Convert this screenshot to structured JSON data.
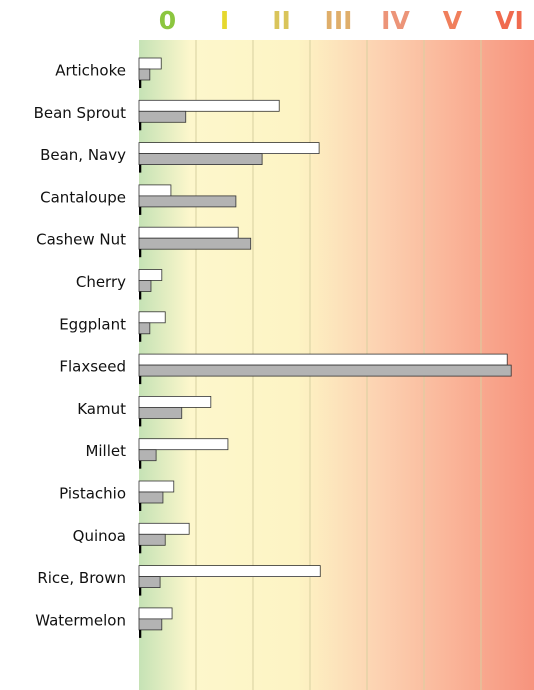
{
  "chart_data": {
    "type": "bar",
    "orientation": "horizontal",
    "categories": [
      "Artichoke",
      "Bean Sprout",
      "Bean, Navy",
      "Cantaloupe",
      "Cashew Nut",
      "Cherry",
      "Eggplant",
      "Flaxseed",
      "Kamut",
      "Millet",
      "Pistachio",
      "Quinoa",
      "Rice, Brown",
      "Watermelon"
    ],
    "series": [
      {
        "color": "#ffffff",
        "values": [
          0.39,
          2.46,
          3.16,
          0.56,
          1.74,
          0.4,
          0.46,
          6.46,
          1.26,
          1.56,
          0.61,
          0.88,
          3.18,
          0.58
        ]
      },
      {
        "color": "#b3b3b3",
        "values": [
          0.19,
          0.82,
          2.16,
          1.7,
          1.96,
          0.21,
          0.19,
          6.53,
          0.75,
          0.3,
          0.42,
          0.46,
          0.37,
          0.4
        ]
      },
      {
        "color": "#000000",
        "values": [
          0.04,
          0.04,
          0.04,
          0.04,
          0.04,
          0.04,
          0.04,
          0.04,
          0.04,
          0.04,
          0.04,
          0.04,
          0.04,
          0.04
        ]
      }
    ],
    "xlim": [
      0,
      6.93
    ],
    "xticks": [
      1,
      2,
      3,
      4,
      5,
      6
    ],
    "classes": [
      {
        "value": 0.5,
        "label": "0",
        "color": "#8cc63f"
      },
      {
        "value": 1.5,
        "label": "I",
        "color": "#e6d82e"
      },
      {
        "value": 2.5,
        "label": "II",
        "color": "#d9c45a"
      },
      {
        "value": 3.5,
        "label": "III",
        "color": "#dfae6a"
      },
      {
        "value": 4.5,
        "label": "IV",
        "color": "#ec9478"
      },
      {
        "value": 5.5,
        "label": "V",
        "color": "#f07f5c"
      },
      {
        "value": 6.5,
        "label": "VI",
        "color": "#f06a4e"
      }
    ],
    "grid": true
  }
}
